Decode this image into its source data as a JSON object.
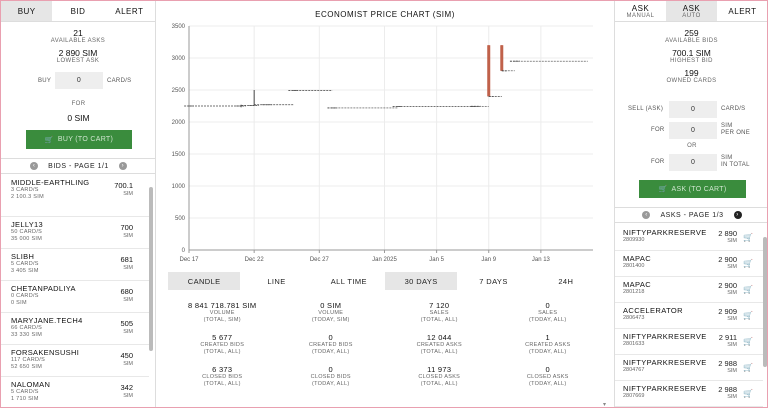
{
  "left": {
    "tabs": [
      {
        "label": "BUY",
        "active": true
      },
      {
        "label": "BID",
        "active": false
      },
      {
        "label": "ALERT",
        "active": false
      }
    ],
    "asks_count": "21",
    "asks_label": "AVAILABLE ASKS",
    "lowest_value": "2 890 SIM",
    "lowest_label": "LOWEST ASK",
    "buy_label": "BUY",
    "buy_value": "0",
    "buy_unit": "CARD/S",
    "for_label": "FOR",
    "total": "0 SIM",
    "button": "BUY (TO CART)",
    "page_title": "BIDS - PAGE 1/1",
    "bids": [
      {
        "name": "MIDDLE-EARTHLING",
        "meta1": "3 CARD/S",
        "meta2": "2 100.3 SIM",
        "price": "700.1",
        "unit": "SIM"
      },
      {
        "name": "JELLY13",
        "meta1": "50 CARD/S",
        "meta2": "35 000 SIM",
        "price": "700",
        "unit": "SIM"
      },
      {
        "name": "SLIBH",
        "meta1": "5 CARD/S",
        "meta2": "3 405 SIM",
        "price": "681",
        "unit": "SIM"
      },
      {
        "name": "CHETANPADLIYA",
        "meta1": "0 CARD/S",
        "meta2": "0 SIM",
        "price": "680",
        "unit": "SIM"
      },
      {
        "name": "MARYJANE.TECH4",
        "meta1": "66 CARD/S",
        "meta2": "33 330 SIM",
        "price": "505",
        "unit": "SIM"
      },
      {
        "name": "FORSAKENSUSHI",
        "meta1": "117 CARD/S",
        "meta2": "52 650 SIM",
        "price": "450",
        "unit": "SIM"
      },
      {
        "name": "NALOMAN",
        "meta1": "5 CARD/S",
        "meta2": "1 710 SIM",
        "price": "342",
        "unit": "SIM"
      }
    ]
  },
  "mid": {
    "title": "ECONOMIST PRICE CHART (SIM)",
    "chart_buttons": [
      {
        "label": "CANDLE",
        "active": true
      },
      {
        "label": "LINE",
        "active": false
      }
    ],
    "range_buttons": [
      {
        "label": "ALL TIME",
        "active": false
      },
      {
        "label": "30 DAYS",
        "active": true
      },
      {
        "label": "7 DAYS",
        "active": false
      },
      {
        "label": "24H",
        "active": false
      }
    ],
    "stats": [
      [
        {
          "v": "8 841 718.781 SIM",
          "l1": "VOLUME",
          "l2": "(TOTAL, SIM)"
        },
        {
          "v": "0 SIM",
          "l1": "VOLUME",
          "l2": "(TODAY, SIM)"
        },
        {
          "v": "7 120",
          "l1": "SALES",
          "l2": "(TOTAL, ALL)"
        },
        {
          "v": "0",
          "l1": "SALES",
          "l2": "(TODAY, ALL)"
        }
      ],
      [
        {
          "v": "5 677",
          "l1": "CREATED BIDS",
          "l2": "(TOTAL, ALL)"
        },
        {
          "v": "0",
          "l1": "CREATED BIDS",
          "l2": "(TODAY, ALL)"
        },
        {
          "v": "12 044",
          "l1": "CREATED ASKS",
          "l2": "(TOTAL, ALL)"
        },
        {
          "v": "1",
          "l1": "CREATED ASKS",
          "l2": "(TODAY, ALL)"
        }
      ],
      [
        {
          "v": "6 373",
          "l1": "CLOSED BIDS",
          "l2": "(TOTAL, ALL)"
        },
        {
          "v": "0",
          "l1": "CLOSED BIDS",
          "l2": "(TODAY, ALL)"
        },
        {
          "v": "11 973",
          "l1": "CLOSED ASKS",
          "l2": "(TOTAL, ALL)"
        },
        {
          "v": "0",
          "l1": "CLOSED ASKS",
          "l2": "(TODAY, ALL)"
        }
      ]
    ]
  },
  "chart_data": {
    "type": "candlestick",
    "title": "ECONOMIST PRICE CHART (SIM)",
    "ylim": [
      0,
      3500
    ],
    "yticks": [
      0,
      500,
      1000,
      1500,
      2000,
      2500,
      3000,
      3500
    ],
    "xticks": [
      "Dec 17",
      "Dec 22",
      "Dec 27",
      "Jan 2025",
      "Jan 5",
      "Jan 9",
      "Jan 13"
    ],
    "xtick_days": [
      0,
      5,
      10,
      15,
      19,
      23,
      27
    ],
    "xrange_days": [
      0,
      31
    ],
    "grid": true,
    "candles": [
      {
        "day": 0,
        "open": 2250,
        "close": 2250,
        "high": 2250,
        "low": 2250
      },
      {
        "day": 4,
        "open": 2250,
        "close": 2260,
        "high": 2270,
        "low": 2230
      },
      {
        "day": 5,
        "open": 2260,
        "close": 2270,
        "high": 2500,
        "low": 2250
      },
      {
        "day": 6,
        "open": 2270,
        "close": 2270,
        "high": 2270,
        "low": 2270
      },
      {
        "day": 8,
        "open": 2490,
        "close": 2490,
        "high": 2490,
        "low": 2490
      },
      {
        "day": 11,
        "open": 2220,
        "close": 2220,
        "high": 2220,
        "low": 2220
      },
      {
        "day": 16,
        "open": 2240,
        "close": 2240,
        "high": 2240,
        "low": 2240
      },
      {
        "day": 22,
        "open": 2245,
        "close": 2245,
        "high": 2245,
        "low": 2245
      },
      {
        "day": 23,
        "open": 3200,
        "close": 2400,
        "high": 3200,
        "low": 2400
      },
      {
        "day": 24,
        "open": 3200,
        "close": 2800,
        "high": 3200,
        "low": 2800
      },
      {
        "day": 25,
        "open": 2950,
        "close": 2950,
        "high": 2950,
        "low": 2950
      }
    ],
    "colors": {
      "down": "#c0614a",
      "flat": "#444444"
    }
  },
  "right": {
    "tabs": [
      {
        "label": "ASK",
        "sub": "MANUAL",
        "active": false
      },
      {
        "label": "ASK",
        "sub": "AUTO",
        "active": true
      },
      {
        "label": "ALERT",
        "sub": "",
        "active": false
      }
    ],
    "bids_count": "259",
    "bids_label": "AVAILABLE BIDS",
    "highest_value": "700.1 SIM",
    "highest_label": "HIGHEST BID",
    "owned": "199",
    "owned_label": "OWNED CARDS",
    "sell_label": "SELL (ASK)",
    "sell_value": "0",
    "sell_unit": "CARD/S",
    "for_label": "FOR",
    "per_value": "0",
    "per_unit1": "SIM",
    "per_unit2": "PER ONE",
    "or_label": "OR",
    "total_value": "0",
    "total_unit1": "SIM",
    "total_unit2": "IN TOTAL",
    "button": "ASK (TO CART)",
    "page_title": "ASKS - PAGE 1/3",
    "asks": [
      {
        "name": "NIFTYPARKRESERVE",
        "id": "2809930",
        "price": "2 890",
        "unit": "SIM"
      },
      {
        "name": "MAPAC",
        "id": "2801400",
        "price": "2 900",
        "unit": "SIM"
      },
      {
        "name": "MAPAC",
        "id": "2801218",
        "price": "2 900",
        "unit": "SIM"
      },
      {
        "name": "ACCELERATOR",
        "id": "2806473",
        "price": "2 909",
        "unit": "SIM"
      },
      {
        "name": "NIFTYPARKRESERVE",
        "id": "2801633",
        "price": "2 911",
        "unit": "SIM"
      },
      {
        "name": "NIFTYPARKRESERVE",
        "id": "2804767",
        "price": "2 988",
        "unit": "SIM"
      },
      {
        "name": "NIFTYPARKRESERVE",
        "id": "2807669",
        "price": "2 988",
        "unit": "SIM"
      }
    ]
  }
}
